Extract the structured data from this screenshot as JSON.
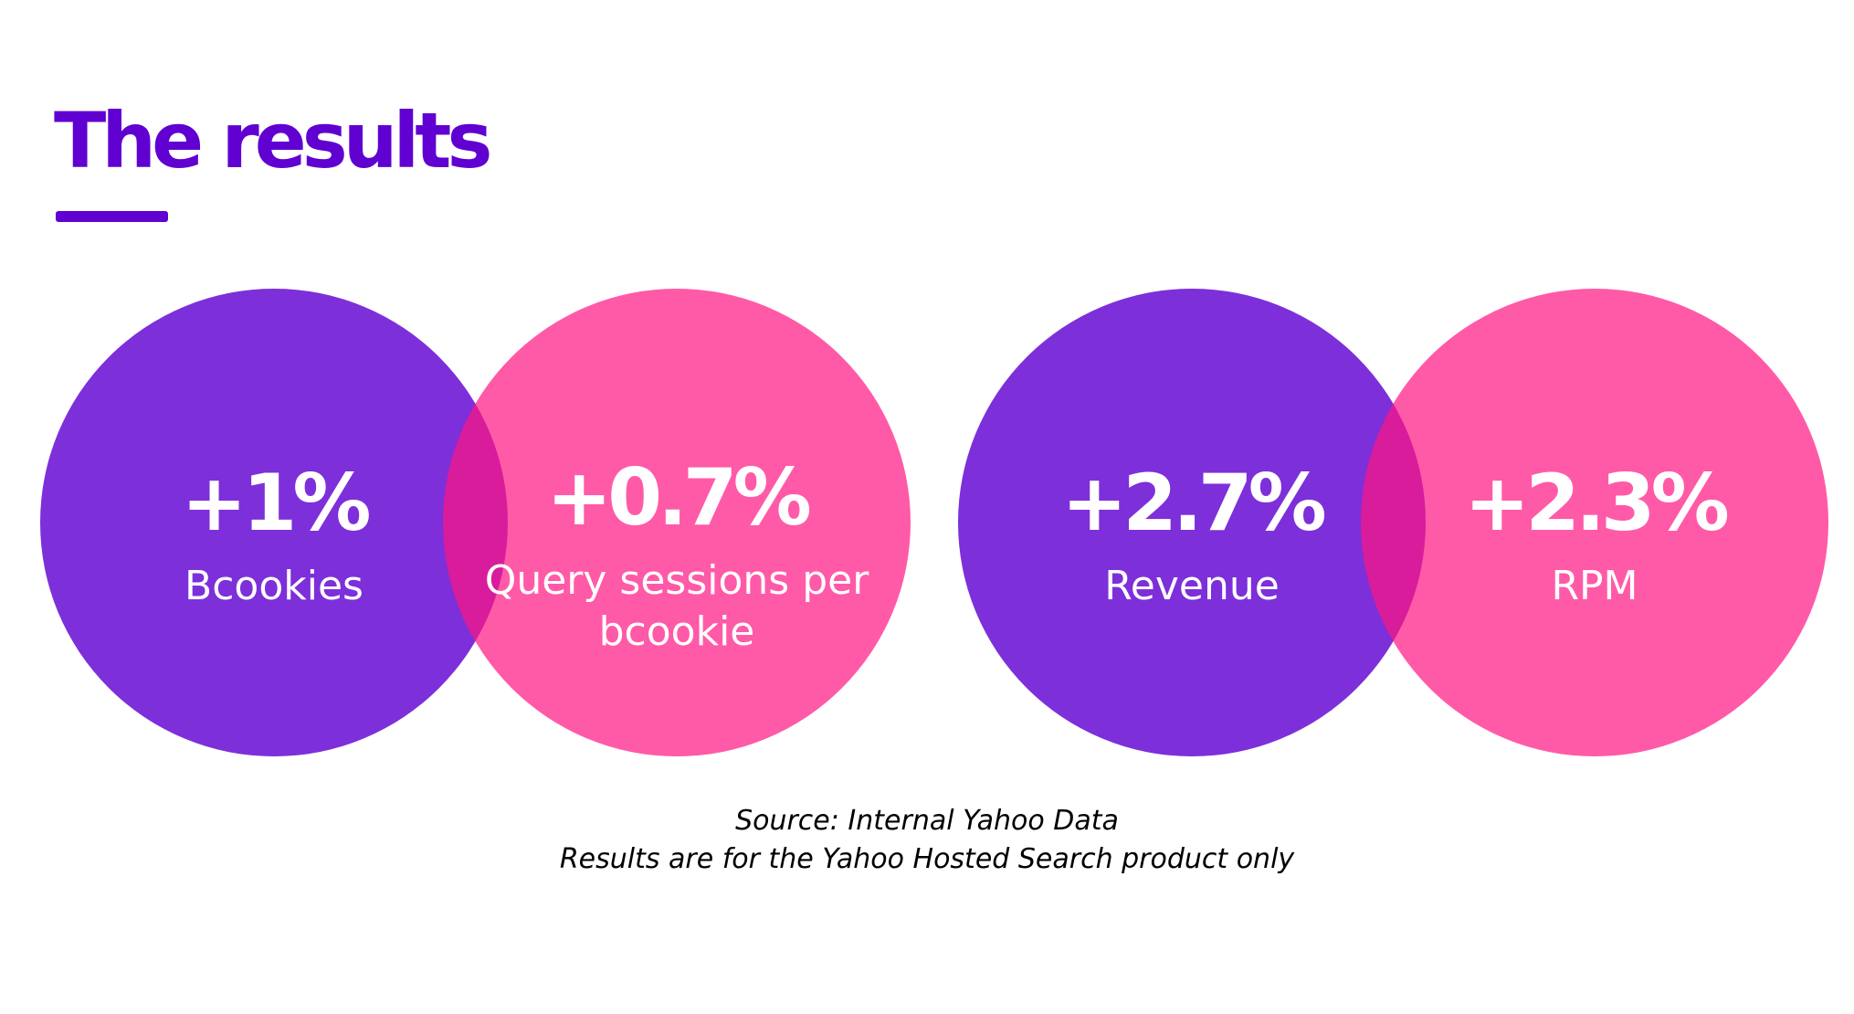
{
  "title": "The results",
  "colors": {
    "brand_purple": "#6001d2",
    "circle_purple": "#7b2fd9",
    "circle_pink": "#ff579b",
    "overlap": "#e11796",
    "text_on_circle": "#ffffff"
  },
  "stats": [
    {
      "value": "+1%",
      "label": "Bcookies"
    },
    {
      "value": "+0.7%",
      "label_line1": "Query sessions per",
      "label_line2": "bcookie"
    },
    {
      "value": "+2.7%",
      "label": "Revenue"
    },
    {
      "value": "+2.3%",
      "label": "RPM"
    }
  ],
  "source": {
    "line1": "Source: Internal Yahoo Data",
    "line2": "Results are for the Yahoo Hosted Search product only"
  }
}
